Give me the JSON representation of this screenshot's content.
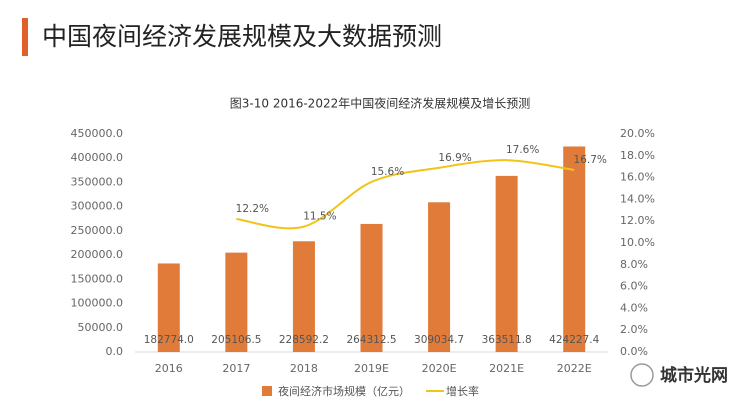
{
  "chart_data": {
    "type": "bar-line",
    "header": "中国夜间经济发展规模及大数据预测",
    "title": "图3-10 2016-2022年中国夜间经济发展规模及增长预测",
    "watermark": "城市光网",
    "categories": [
      "2016",
      "2017",
      "2018",
      "2019E",
      "2020E",
      "2021E",
      "2022E"
    ],
    "series": [
      {
        "name": "夜间经济市场规模（亿元）",
        "type": "bar",
        "color": "#e07b39",
        "values": [
          182774.0,
          205106.5,
          228592.2,
          264312.5,
          309034.7,
          363511.8,
          424227.4
        ],
        "value_labels": [
          "182774.0",
          "205106.5",
          "228592.2",
          "264312.5",
          "309034.7",
          "363511.8",
          "424227.4"
        ]
      },
      {
        "name": "增长率",
        "type": "line",
        "axis": "y2",
        "color": "#f0c419",
        "values": [
          null,
          12.2,
          11.5,
          15.6,
          16.9,
          17.6,
          16.7
        ],
        "value_labels": [
          null,
          "12.2%",
          "11.5%",
          "15.6%",
          "16.9%",
          "17.6%",
          "16.7%"
        ]
      }
    ],
    "ylim": [
      0,
      450000
    ],
    "yticks": [
      {
        "value": 0,
        "label": "0.0"
      },
      {
        "value": 50000,
        "label": "50000.0"
      },
      {
        "value": 100000,
        "label": "100000.0"
      },
      {
        "value": 150000,
        "label": "150000.0"
      },
      {
        "value": 200000,
        "label": "200000.0"
      },
      {
        "value": 250000,
        "label": "250000.0"
      },
      {
        "value": 300000,
        "label": "300000.0"
      },
      {
        "value": 350000,
        "label": "350000.0"
      },
      {
        "value": 400000,
        "label": "400000.0"
      },
      {
        "value": 450000,
        "label": "450000.0"
      }
    ],
    "y2lim": [
      0,
      20
    ],
    "y2ticks": [
      {
        "value": 0,
        "label": "0.0%"
      },
      {
        "value": 2,
        "label": "2.0%"
      },
      {
        "value": 4,
        "label": "4.0%"
      },
      {
        "value": 6,
        "label": "6.0%"
      },
      {
        "value": 8,
        "label": "8.0%"
      },
      {
        "value": 10,
        "label": "10.0%"
      },
      {
        "value": 12,
        "label": "12.0%"
      },
      {
        "value": 14,
        "label": "14.0%"
      },
      {
        "value": 16,
        "label": "16.0%"
      },
      {
        "value": 18,
        "label": "18.0%"
      },
      {
        "value": 20,
        "label": "20.0%"
      }
    ],
    "grid": false,
    "legend": "bottom"
  }
}
